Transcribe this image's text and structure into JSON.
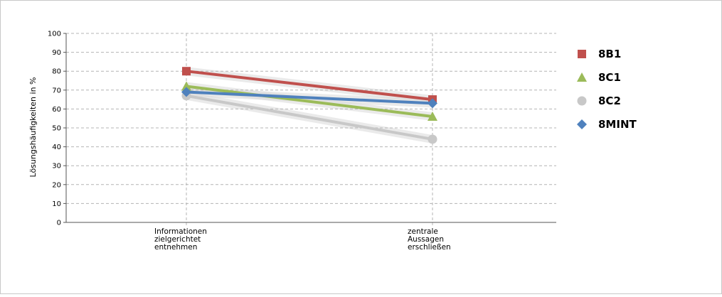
{
  "chart_data": {
    "type": "line",
    "title": "",
    "ylabel": "Lösungshäufigkeiten in %",
    "xlabel": "",
    "ylim": [
      0,
      100
    ],
    "yticks": [
      0,
      10,
      20,
      30,
      40,
      50,
      60,
      70,
      80,
      90,
      100
    ],
    "categories": [
      [
        "Informationen",
        "zielgerichtet",
        "entnehmen"
      ],
      [
        "zentrale",
        "Aussagen",
        "erschließen"
      ]
    ],
    "grid": true,
    "legend_position": "right",
    "series": [
      {
        "name": "8B1",
        "values": [
          80,
          65
        ],
        "color": "#c0504d",
        "marker": "square"
      },
      {
        "name": "8C1",
        "values": [
          72,
          56
        ],
        "color": "#9bbb59",
        "marker": "triangle"
      },
      {
        "name": "8C2",
        "values": [
          67,
          44
        ],
        "color": "#c8c8c8",
        "marker": "circle"
      },
      {
        "name": "8MINT",
        "values": [
          69,
          63
        ],
        "color": "#4f81bd",
        "marker": "diamond"
      }
    ]
  }
}
